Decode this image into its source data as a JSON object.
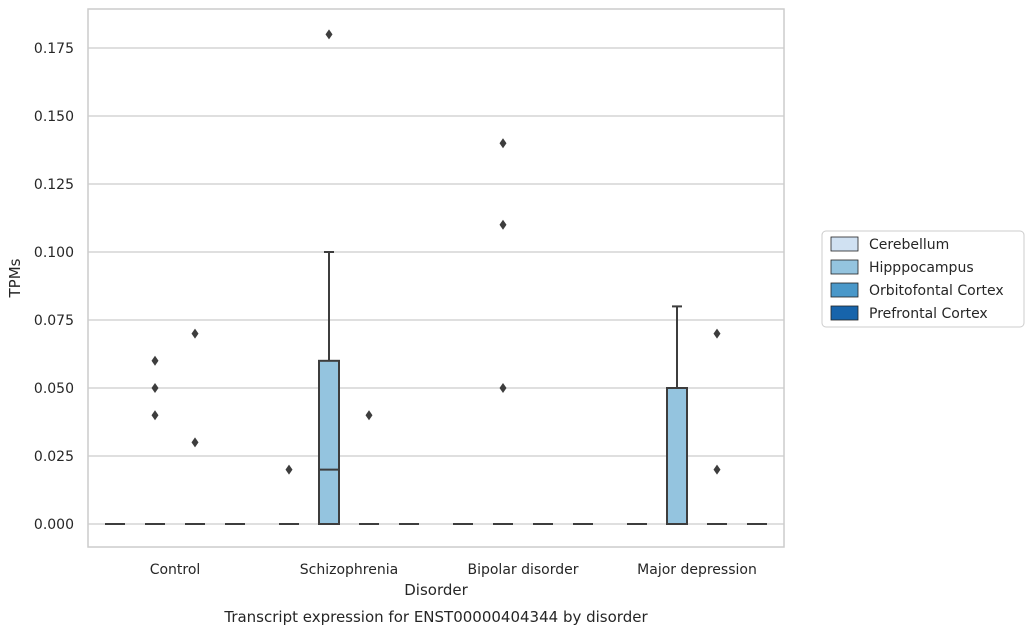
{
  "chart_data": {
    "type": "box",
    "xlabel": "Disorder",
    "ylabel": "TPMs",
    "caption": "Transcript expression for ENST00000404344 by disorder",
    "categories": [
      "Control",
      "Schizophrenia",
      "Bipolar disorder",
      "Major depression"
    ],
    "yticks": [
      "0.000",
      "0.025",
      "0.050",
      "0.075",
      "0.100",
      "0.125",
      "0.150",
      "0.175"
    ],
    "ylim": [
      -0.009,
      0.189
    ],
    "grid": true,
    "legend_placement": "right",
    "series": [
      {
        "name": "Cerebellum",
        "color": "#d0e1f2",
        "boxes": [
          {
            "q1": 0,
            "median": 0,
            "q3": 0,
            "whisker_low": 0,
            "whisker_high": 0,
            "outliers": []
          },
          {
            "q1": 0,
            "median": 0,
            "q3": 0,
            "whisker_low": 0,
            "whisker_high": 0,
            "outliers": [
              0.02
            ]
          },
          {
            "q1": 0,
            "median": 0,
            "q3": 0,
            "whisker_low": 0,
            "whisker_high": 0,
            "outliers": []
          },
          {
            "q1": 0,
            "median": 0,
            "q3": 0,
            "whisker_low": 0,
            "whisker_high": 0,
            "outliers": []
          }
        ]
      },
      {
        "name": "Hipppocampus",
        "color": "#94c4df",
        "boxes": [
          {
            "q1": 0,
            "median": 0,
            "q3": 0,
            "whisker_low": 0,
            "whisker_high": 0,
            "outliers": [
              0.04,
              0.05,
              0.06
            ]
          },
          {
            "q1": 0,
            "median": 0.02,
            "q3": 0.06,
            "whisker_low": 0,
            "whisker_high": 0.1,
            "outliers": [
              0.18
            ]
          },
          {
            "q1": 0,
            "median": 0,
            "q3": 0,
            "whisker_low": 0,
            "whisker_high": 0,
            "outliers": [
              0.05,
              0.11,
              0.14
            ]
          },
          {
            "q1": 0,
            "median": 0,
            "q3": 0.05,
            "whisker_low": 0,
            "whisker_high": 0.08,
            "outliers": []
          }
        ]
      },
      {
        "name": "Orbitofontal Cortex",
        "color": "#4a98c9",
        "boxes": [
          {
            "q1": 0,
            "median": 0,
            "q3": 0,
            "whisker_low": 0,
            "whisker_high": 0,
            "outliers": [
              0.03,
              0.07
            ]
          },
          {
            "q1": 0,
            "median": 0,
            "q3": 0,
            "whisker_low": 0,
            "whisker_high": 0,
            "outliers": [
              0.04
            ]
          },
          {
            "q1": 0,
            "median": 0,
            "q3": 0,
            "whisker_low": 0,
            "whisker_high": 0,
            "outliers": []
          },
          {
            "q1": 0,
            "median": 0,
            "q3": 0,
            "whisker_low": 0,
            "whisker_high": 0,
            "outliers": [
              0.02,
              0.07
            ]
          }
        ]
      },
      {
        "name": "Prefrontal Cortex",
        "color": "#1764ab",
        "boxes": [
          {
            "q1": 0,
            "median": 0,
            "q3": 0,
            "whisker_low": 0,
            "whisker_high": 0,
            "outliers": []
          },
          {
            "q1": 0,
            "median": 0,
            "q3": 0,
            "whisker_low": 0,
            "whisker_high": 0,
            "outliers": []
          },
          {
            "q1": 0,
            "median": 0,
            "q3": 0,
            "whisker_low": 0,
            "whisker_high": 0,
            "outliers": []
          },
          {
            "q1": 0,
            "median": 0,
            "q3": 0,
            "whisker_low": 0,
            "whisker_high": 0,
            "outliers": []
          }
        ]
      }
    ]
  }
}
